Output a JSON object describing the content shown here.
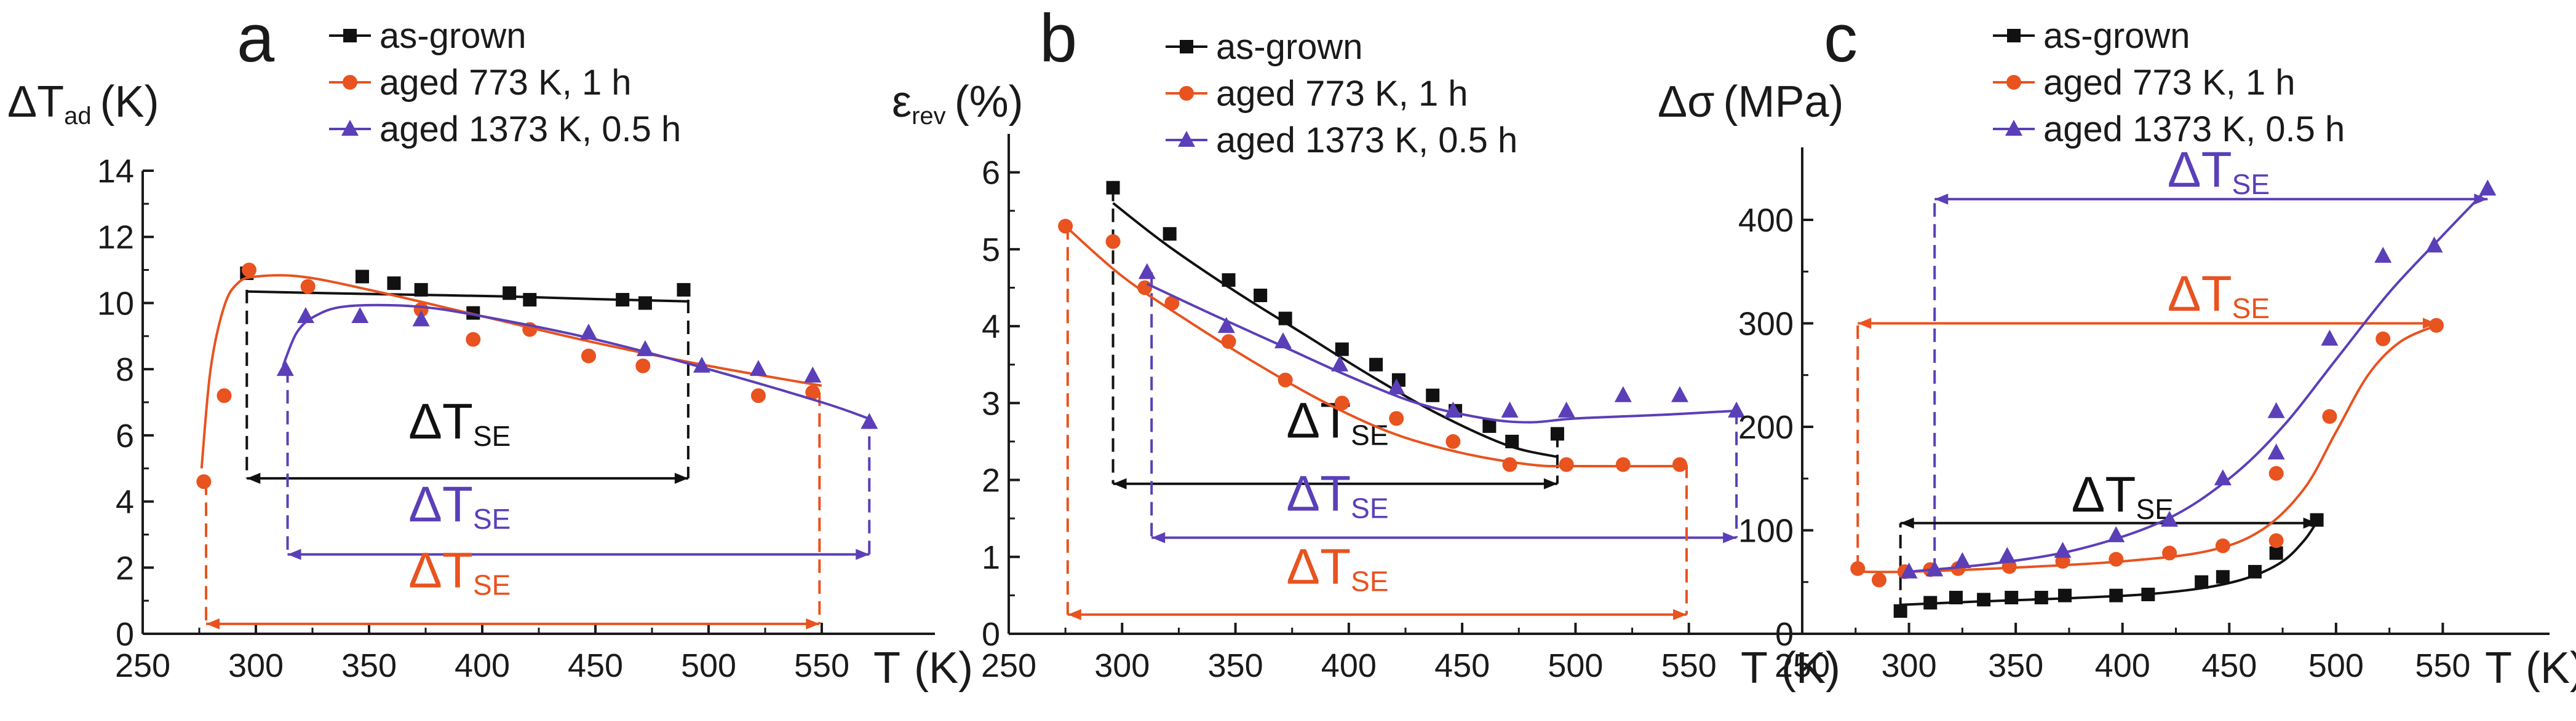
{
  "chart_data": [
    {
      "type": "scatter",
      "panel": "a",
      "ylabel": "ΔT",
      "ylabel_sub": "ad",
      "ylabel_unit": "(K)",
      "xlabel": "T",
      "xlabel_unit": "(K)",
      "xlim": [
        250,
        600
      ],
      "ylim": [
        0,
        14
      ],
      "xticks": [
        250,
        300,
        350,
        400,
        450,
        500,
        550
      ],
      "yticks": [
        0,
        2,
        4,
        6,
        8,
        10,
        12,
        14
      ],
      "series": [
        {
          "name": "as-grown",
          "color": "#111111",
          "marker": "square",
          "x": [
            296,
            347,
            361,
            373,
            396,
            412,
            421,
            462,
            472,
            489
          ],
          "y": [
            10.9,
            10.8,
            10.6,
            10.4,
            9.7,
            10.3,
            10.1,
            10.1,
            10.0,
            10.4
          ],
          "fit_x": [
            296,
            330,
            370,
            410,
            450,
            491
          ],
          "fit_y": [
            10.35,
            10.3,
            10.25,
            10.2,
            10.12,
            10.05
          ]
        },
        {
          "name": "aged 773 K, 1 h",
          "color": "#e8531f",
          "marker": "circle",
          "x": [
            277,
            286,
            297,
            323,
            373,
            396,
            421,
            447,
            471,
            522,
            546
          ],
          "y": [
            4.6,
            7.2,
            11.0,
            10.5,
            9.8,
            8.9,
            9.2,
            8.4,
            8.1,
            7.2,
            7.3
          ],
          "fit_x": [
            276,
            280,
            286,
            292,
            300,
            320,
            350,
            400,
            450,
            500,
            550
          ],
          "fit_y": [
            5.0,
            8.0,
            9.9,
            10.6,
            10.8,
            10.8,
            10.4,
            9.6,
            8.8,
            8.1,
            7.5
          ]
        },
        {
          "name": "aged 1373 K, 0.5 h",
          "color": "#5b3fb8",
          "marker": "triangle",
          "x": [
            313,
            322,
            346,
            373,
            447,
            472,
            497,
            522,
            546,
            571
          ],
          "y": [
            8.0,
            9.6,
            9.6,
            9.5,
            9.1,
            8.6,
            8.1,
            8.0,
            7.8,
            6.4
          ],
          "fit_x": [
            312,
            318,
            326,
            340,
            370,
            400,
            450,
            500,
            550,
            571
          ],
          "fit_y": [
            8.1,
            9.1,
            9.6,
            9.9,
            9.9,
            9.6,
            8.9,
            8.0,
            7.0,
            6.5
          ]
        }
      ],
      "annotations": [
        {
          "label": "ΔT",
          "sub": "SE",
          "color": "#111111",
          "x1": 296,
          "x2": 491,
          "y": 4.7,
          "drop1": 10.4,
          "drop2": 10.1,
          "text_x": 390,
          "text_y": 5.9
        },
        {
          "label": "ΔT",
          "sub": "SE",
          "color": "#5b3fb8",
          "x1": 314,
          "x2": 571,
          "y": 2.4,
          "drop1": 8.0,
          "drop2": 6.6,
          "text_x": 390,
          "text_y": 3.4
        },
        {
          "label": "ΔT",
          "sub": "SE",
          "color": "#e8531f",
          "x1": 278,
          "x2": 549,
          "y": 0.3,
          "drop1": 4.6,
          "drop2": 7.3,
          "text_x": 390,
          "text_y": 1.4
        }
      ]
    },
    {
      "type": "scatter",
      "panel": "b",
      "ylabel": "ε",
      "ylabel_sub": "rev",
      "ylabel_unit": "(%)",
      "xlabel": "T",
      "xlabel_unit": "(K)",
      "xlim": [
        250,
        600
      ],
      "ylim": [
        0,
        6.5
      ],
      "xticks": [
        250,
        300,
        350,
        400,
        450,
        500,
        550
      ],
      "yticks": [
        0,
        1,
        2,
        3,
        4,
        5,
        6
      ],
      "series": [
        {
          "name": "as-grown",
          "color": "#111111",
          "marker": "square",
          "x": [
            296,
            321,
            347,
            361,
            372,
            397,
            412,
            422,
            437,
            447,
            462,
            472,
            492
          ],
          "y": [
            5.8,
            5.2,
            4.6,
            4.4,
            4.1,
            3.7,
            3.5,
            3.3,
            3.1,
            2.9,
            2.7,
            2.5,
            2.6
          ],
          "fit_x": [
            296,
            320,
            350,
            380,
            410,
            440,
            470,
            492
          ],
          "fit_y": [
            5.6,
            5.05,
            4.45,
            3.9,
            3.35,
            2.85,
            2.45,
            2.3
          ]
        },
        {
          "name": "aged 773 K, 1 h",
          "color": "#e8531f",
          "marker": "circle",
          "x": [
            275,
            296,
            310,
            322,
            347,
            372,
            397,
            421,
            446,
            471,
            496,
            521,
            546
          ],
          "y": [
            5.3,
            5.1,
            4.5,
            4.3,
            3.8,
            3.3,
            3.0,
            2.8,
            2.5,
            2.2,
            2.2,
            2.2,
            2.2
          ],
          "fit_x": [
            275,
            300,
            330,
            360,
            390,
            420,
            450,
            480,
            500,
            549
          ],
          "fit_y": [
            5.3,
            4.65,
            4.05,
            3.5,
            3.0,
            2.6,
            2.35,
            2.2,
            2.18,
            2.18
          ]
        },
        {
          "name": "aged 1373 K, 0.5 h",
          "color": "#5b3fb8",
          "marker": "triangle",
          "x": [
            311,
            346,
            371,
            396,
            421,
            446,
            471,
            496,
            521,
            546,
            571
          ],
          "y": [
            4.7,
            4.0,
            3.8,
            3.5,
            3.2,
            2.9,
            2.9,
            2.9,
            3.1,
            3.1,
            2.9
          ],
          "fit_x": [
            311,
            340,
            370,
            400,
            430,
            460,
            480,
            500,
            540,
            571
          ],
          "fit_y": [
            4.55,
            4.15,
            3.75,
            3.35,
            3.0,
            2.8,
            2.75,
            2.8,
            2.85,
            2.9
          ]
        }
      ],
      "annotations": [
        {
          "label": "ΔT",
          "sub": "SE",
          "color": "#111111",
          "x1": 296,
          "x2": 492,
          "y": 1.95,
          "drop1": 5.8,
          "drop2": 2.6,
          "text_x": 395,
          "text_y": 2.55
        },
        {
          "label": "ΔT",
          "sub": "SE",
          "color": "#5b3fb8",
          "x1": 313,
          "x2": 571,
          "y": 1.25,
          "drop1": 4.7,
          "drop2": 2.9,
          "text_x": 395,
          "text_y": 1.6
        },
        {
          "label": "ΔT",
          "sub": "SE",
          "color": "#e8531f",
          "x1": 276,
          "x2": 549,
          "y": 0.25,
          "drop1": 5.3,
          "drop2": 2.2,
          "text_x": 395,
          "text_y": 0.65
        }
      ]
    },
    {
      "type": "scatter",
      "panel": "c",
      "ylabel": "Δσ",
      "ylabel_sub": "",
      "ylabel_unit": "(MPa)",
      "xlabel": "T",
      "xlabel_unit": "(K)",
      "xlim": [
        250,
        600
      ],
      "ylim": [
        0,
        470
      ],
      "xticks": [
        250,
        300,
        350,
        400,
        450,
        500,
        550
      ],
      "yticks": [
        0,
        100,
        200,
        300,
        400
      ],
      "series": [
        {
          "name": "as-grown",
          "color": "#111111",
          "marker": "square",
          "x": [
            296,
            310,
            322,
            335,
            348,
            362,
            373,
            397,
            412,
            437,
            447,
            462,
            472,
            491
          ],
          "y": [
            22,
            30,
            35,
            33,
            35,
            35,
            37,
            37,
            38,
            50,
            55,
            60,
            78,
            110
          ],
          "fit_x": [
            296,
            330,
            370,
            410,
            440,
            460,
            475,
            485,
            491
          ],
          "fit_y": [
            28,
            31,
            34,
            38,
            45,
            55,
            70,
            90,
            108
          ]
        },
        {
          "name": "aged 773 K, 1 h",
          "color": "#e8531f",
          "marker": "circle",
          "x": [
            276,
            286,
            298,
            310,
            323,
            347,
            372,
            397,
            422,
            447,
            472,
            472,
            497,
            522,
            547
          ],
          "y": [
            63,
            52,
            60,
            62,
            63,
            65,
            70,
            72,
            78,
            85,
            90,
            155,
            210,
            285,
            298
          ],
          "fit_x": [
            276,
            300,
            350,
            400,
            440,
            465,
            485,
            500,
            515,
            530,
            547
          ],
          "fit_y": [
            60,
            60,
            64,
            70,
            80,
            100,
            140,
            195,
            250,
            282,
            298
          ]
        },
        {
          "name": "aged 1373 K, 0.5 h",
          "color": "#5b3fb8",
          "marker": "triangle",
          "x": [
            300,
            312,
            325,
            346,
            372,
            397,
            422,
            447,
            472,
            472,
            497,
            522,
            546,
            571
          ],
          "y": [
            60,
            62,
            70,
            75,
            80,
            95,
            110,
            150,
            175,
            215,
            285,
            365,
            375,
            430
          ],
          "fit_x": [
            300,
            340,
            380,
            420,
            450,
            475,
            500,
            525,
            550,
            571
          ],
          "fit_y": [
            60,
            68,
            82,
            110,
            150,
            200,
            265,
            330,
            385,
            430
          ]
        }
      ],
      "annotations": [
        {
          "label": "ΔT",
          "sub": "SE",
          "color": "#5b3fb8",
          "x1": 312,
          "x2": 571,
          "y": 420,
          "drop1": 60,
          "drop2": null,
          "text_x": 445,
          "text_y": 432
        },
        {
          "label": "ΔT",
          "sub": "SE",
          "color": "#e8531f",
          "x1": 276,
          "x2": 547,
          "y": 300,
          "drop1": 63,
          "drop2": null,
          "text_x": 445,
          "text_y": 312
        },
        {
          "label": "ΔT",
          "sub": "SE",
          "color": "#111111",
          "x1": 296,
          "x2": 491,
          "y": 107,
          "drop1": 22,
          "drop2": null,
          "text_x": 400,
          "text_y": 118
        }
      ]
    }
  ]
}
